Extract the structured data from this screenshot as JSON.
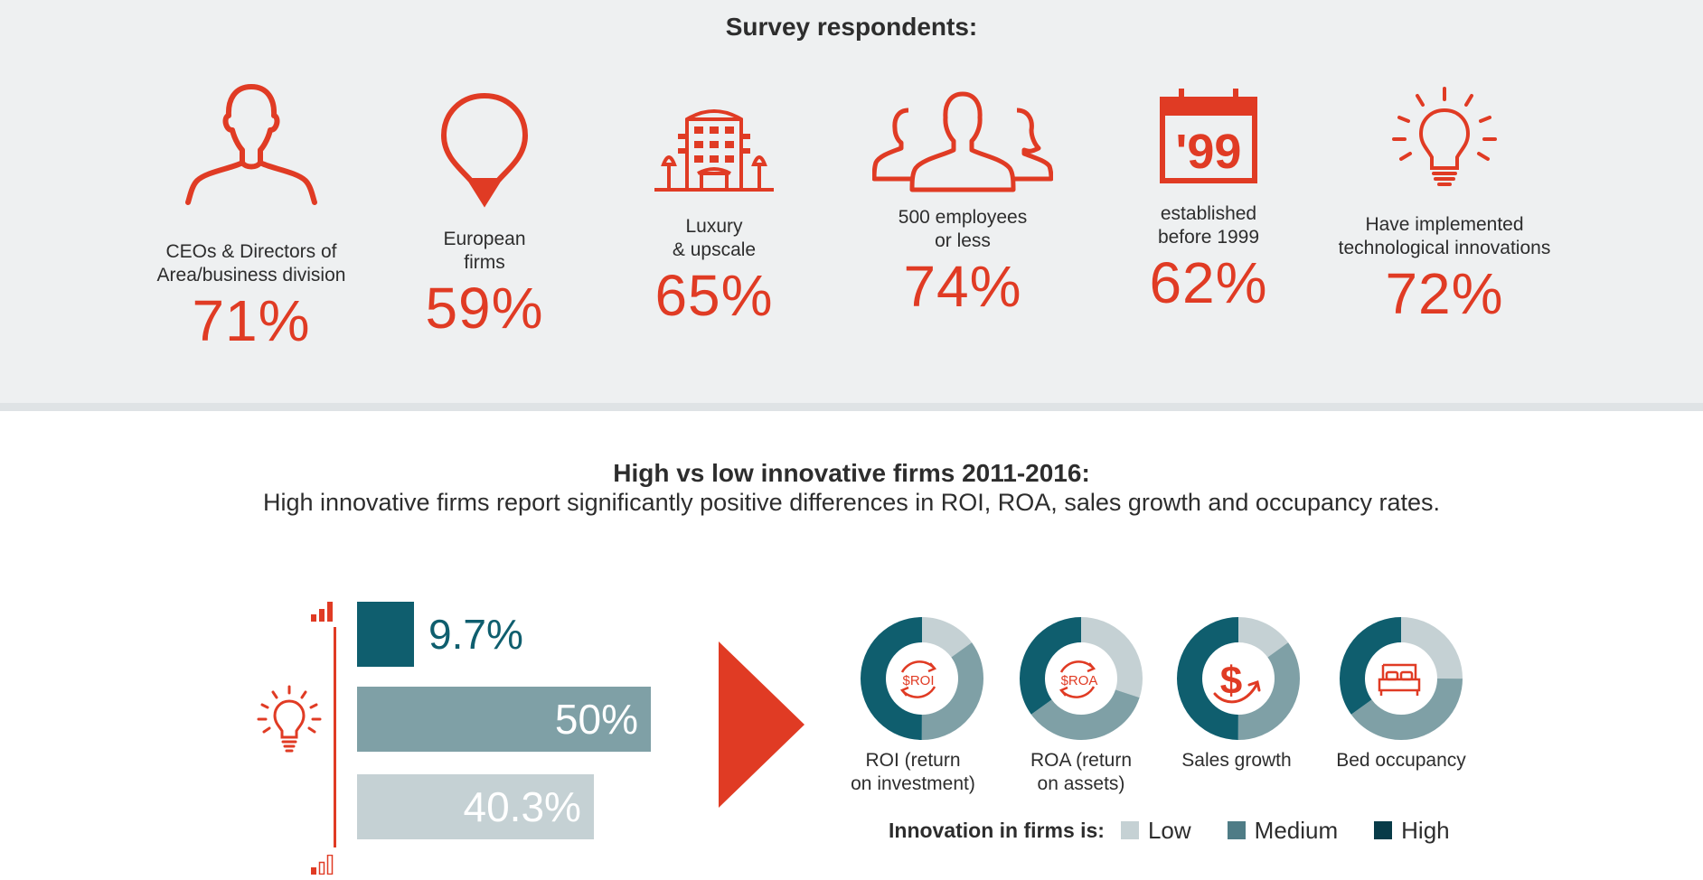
{
  "survey": {
    "title": "Survey respondents:",
    "stats": [
      {
        "icon": "person-icon",
        "label": "CEOs & Directors of\nArea/business division",
        "value": "71%"
      },
      {
        "icon": "location-pin-icon",
        "label": "European\nfirms",
        "value": "59%"
      },
      {
        "icon": "hotel-icon",
        "label": "Luxury\n& upscale",
        "value": "65%"
      },
      {
        "icon": "group-icon",
        "label": "500 employees\nor less",
        "value": "74%"
      },
      {
        "icon": "calendar-icon",
        "calendar_text": "'99",
        "label": "established\nbefore 1999",
        "value": "62%"
      },
      {
        "icon": "lightbulb-icon",
        "label": "Have implemented\ntechnological innovations",
        "value": "72%"
      }
    ]
  },
  "comparison": {
    "title": "High vs low innovative firms 2011-2016:",
    "subtitle": "High innovative firms report significantly positive differences in ROI, ROA, sales growth and occupancy rates.",
    "donut_labels": [
      "ROI (return\non investment)",
      "ROA (return\non assets)",
      "Sales growth",
      "Bed occupancy"
    ],
    "donut_icon_text": [
      "$ROI",
      "$ROA"
    ],
    "legend_title": "Innovation in firms is:"
  },
  "colors": {
    "accent": "#e03b24",
    "low": "#c5d1d4",
    "medium": "#7fa0a6",
    "high": "#0f5e6e",
    "text": "#2d2d2d"
  },
  "chart_data": [
    {
      "type": "bar",
      "orientation": "horizontal",
      "categories": [
        "High",
        "Medium",
        "Low"
      ],
      "values": [
        9.7,
        50,
        40.3
      ],
      "value_labels": [
        "9.7%",
        "50%",
        "40.3%"
      ],
      "unit": "%"
    },
    {
      "type": "pie",
      "style": "donut",
      "charts": [
        "ROI (return on investment)",
        "ROA (return on assets)",
        "Sales growth",
        "Bed occupancy"
      ],
      "series": [
        {
          "name": "Low",
          "values": [
            15,
            30,
            15,
            25
          ]
        },
        {
          "name": "Medium",
          "values": [
            35,
            35,
            35,
            40
          ]
        },
        {
          "name": "High",
          "values": [
            50,
            35,
            50,
            35
          ]
        }
      ],
      "legend": [
        "Low",
        "Medium",
        "High"
      ],
      "legend_placement": "bottom"
    }
  ]
}
